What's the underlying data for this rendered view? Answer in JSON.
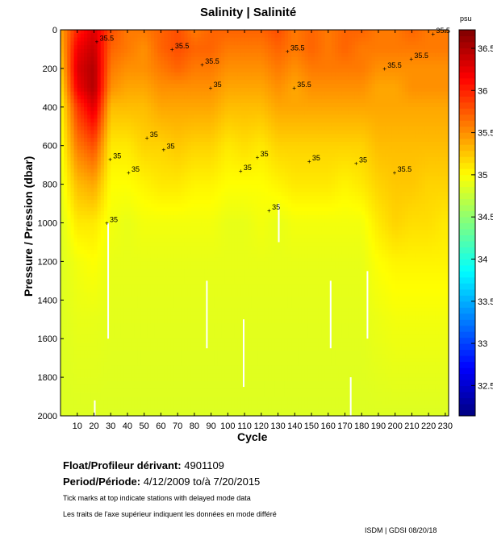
{
  "chart_data": {
    "type": "heatmap",
    "title": "Salinity | Salinité",
    "xlabel": "Cycle",
    "ylabel": "Pressure / Pression (dbar)",
    "colorbar_label": "psu",
    "xlim": [
      0,
      232
    ],
    "ylim": [
      0,
      2000
    ],
    "clim": [
      32.14,
      36.72
    ],
    "colormap": "jet",
    "xticks": [
      10,
      20,
      30,
      40,
      50,
      60,
      70,
      80,
      90,
      100,
      110,
      120,
      130,
      140,
      150,
      160,
      170,
      180,
      190,
      200,
      210,
      220,
      230
    ],
    "yticks": [
      0,
      200,
      400,
      600,
      800,
      1000,
      1200,
      1400,
      1600,
      1800,
      2000
    ],
    "cticks": [
      32.5,
      33,
      33.5,
      34,
      34.5,
      35,
      35.5,
      36,
      36.5
    ],
    "grid_cycles": [
      0,
      10,
      20,
      30,
      40,
      50,
      60,
      70,
      80,
      90,
      100,
      110,
      120,
      130,
      140,
      150,
      160,
      170,
      180,
      190,
      200,
      210,
      220,
      230
    ],
    "grid_pressures": [
      0,
      100,
      200,
      300,
      400,
      600,
      800,
      1000,
      1200,
      1500,
      2000
    ],
    "values": [
      [
        35.4,
        36.0,
        36.3,
        35.8,
        35.6,
        35.6,
        35.7,
        35.8,
        35.6,
        35.7,
        35.7,
        35.7,
        35.7,
        35.8,
        35.6,
        35.7,
        35.6,
        35.7,
        35.7,
        35.6,
        35.6,
        35.7,
        35.6,
        35.6
      ],
      [
        35.3,
        36.2,
        36.4,
        35.7,
        35.6,
        35.5,
        35.7,
        35.8,
        35.7,
        35.7,
        35.6,
        35.6,
        35.6,
        35.7,
        35.6,
        35.7,
        35.6,
        35.7,
        35.6,
        35.6,
        35.6,
        35.6,
        35.6,
        35.6
      ],
      [
        35.2,
        36.3,
        36.5,
        35.6,
        35.5,
        35.5,
        35.6,
        35.7,
        35.6,
        35.6,
        35.5,
        35.5,
        35.5,
        35.6,
        35.5,
        35.6,
        35.6,
        35.6,
        35.6,
        35.5,
        35.5,
        35.5,
        35.5,
        35.5
      ],
      [
        35.1,
        36.2,
        36.5,
        35.5,
        35.4,
        35.4,
        35.5,
        35.5,
        35.5,
        35.5,
        35.4,
        35.4,
        35.4,
        35.5,
        35.4,
        35.5,
        35.5,
        35.5,
        35.5,
        35.4,
        35.4,
        35.5,
        35.5,
        35.5
      ],
      [
        35.0,
        35.9,
        36.3,
        35.3,
        35.3,
        35.3,
        35.4,
        35.4,
        35.4,
        35.4,
        35.3,
        35.3,
        35.3,
        35.4,
        35.4,
        35.4,
        35.4,
        35.4,
        35.4,
        35.4,
        35.4,
        35.4,
        35.4,
        35.4
      ],
      [
        34.95,
        35.6,
        35.8,
        35.1,
        35.1,
        35.2,
        35.2,
        35.25,
        35.2,
        35.2,
        35.1,
        35.15,
        35.1,
        35.2,
        35.2,
        35.2,
        35.2,
        35.2,
        35.2,
        35.3,
        35.3,
        35.3,
        35.3,
        35.3
      ],
      [
        34.9,
        35.3,
        35.4,
        35.0,
        35.0,
        35.05,
        35.1,
        35.1,
        35.05,
        35.05,
        35.0,
        35.0,
        35.0,
        35.05,
        35.1,
        35.1,
        35.1,
        35.05,
        35.1,
        35.2,
        35.25,
        35.25,
        35.2,
        35.2
      ],
      [
        34.85,
        35.1,
        35.1,
        34.95,
        34.9,
        34.95,
        34.95,
        34.95,
        34.95,
        34.95,
        34.9,
        34.9,
        34.95,
        34.9,
        34.95,
        34.95,
        34.95,
        34.95,
        34.95,
        35.1,
        35.2,
        35.15,
        35.15,
        35.1
      ],
      [
        34.85,
        34.95,
        35.0,
        34.9,
        34.9,
        34.9,
        34.9,
        34.9,
        34.9,
        34.9,
        34.9,
        34.9,
        34.9,
        34.9,
        34.9,
        34.9,
        34.9,
        34.9,
        34.9,
        35.0,
        35.05,
        35.05,
        35.05,
        35.05
      ],
      [
        34.85,
        34.9,
        34.9,
        34.88,
        34.88,
        34.88,
        34.88,
        34.88,
        34.88,
        34.88,
        34.88,
        34.88,
        34.88,
        34.88,
        34.88,
        34.88,
        34.88,
        34.88,
        34.88,
        34.92,
        34.95,
        34.95,
        34.95,
        34.95
      ],
      [
        34.85,
        34.85,
        34.85,
        34.85,
        34.85,
        34.85,
        34.85,
        34.85,
        34.85,
        34.85,
        34.85,
        34.85,
        34.85,
        34.85,
        34.85,
        34.85,
        34.85,
        34.85,
        34.85,
        34.85,
        34.85,
        34.85,
        34.85,
        34.85
      ]
    ],
    "data_gaps": [
      [
        28,
        1000,
        1600
      ],
      [
        87,
        1300,
        1650
      ],
      [
        109,
        1500,
        1850
      ],
      [
        130,
        900,
        1100
      ],
      [
        161,
        1300,
        1650
      ],
      [
        173,
        1800,
        2000
      ],
      [
        183,
        1250,
        1600
      ],
      [
        20,
        1920,
        2000
      ]
    ],
    "contour_labels": [
      {
        "text": "35.5",
        "cycle": 22,
        "p": 60
      },
      {
        "text": "35.5",
        "cycle": 67,
        "p": 100
      },
      {
        "text": "35.5",
        "cycle": 85,
        "p": 180
      },
      {
        "text": "35.5",
        "cycle": 136,
        "p": 110
      },
      {
        "text": "35.5",
        "cycle": 140,
        "p": 300
      },
      {
        "text": "35.5",
        "cycle": 194,
        "p": 200
      },
      {
        "text": "35.5",
        "cycle": 210,
        "p": 150
      },
      {
        "text": "35.5",
        "cycle": 223,
        "p": 20
      },
      {
        "text": "35.5",
        "cycle": 200,
        "p": 740
      },
      {
        "text": "35",
        "cycle": 52,
        "p": 560
      },
      {
        "text": "35",
        "cycle": 62,
        "p": 620
      },
      {
        "text": "35",
        "cycle": 118,
        "p": 660
      },
      {
        "text": "35",
        "cycle": 108,
        "p": 730
      },
      {
        "text": "35",
        "cycle": 30,
        "p": 670
      },
      {
        "text": "35",
        "cycle": 28,
        "p": 1000
      },
      {
        "text": "35",
        "cycle": 125,
        "p": 935
      },
      {
        "text": "35",
        "cycle": 149,
        "p": 680
      },
      {
        "text": "35",
        "cycle": 177,
        "p": 690
      },
      {
        "text": "35",
        "cycle": 41,
        "p": 740
      },
      {
        "text": "35",
        "cycle": 90,
        "p": 300
      }
    ]
  },
  "info": {
    "float_label": "Float/Profileur dérivant:",
    "float_value": "4901109",
    "period_label": "Period/Période:",
    "period_value": "4/12/2009  to/à  7/20/2015",
    "note_en": "Tick marks at top indicate stations with delayed mode data",
    "note_fr": "Les traits de l'axe supérieur indiquent les données en mode différé",
    "credit": "ISDM | GDSI  08/20/18"
  }
}
